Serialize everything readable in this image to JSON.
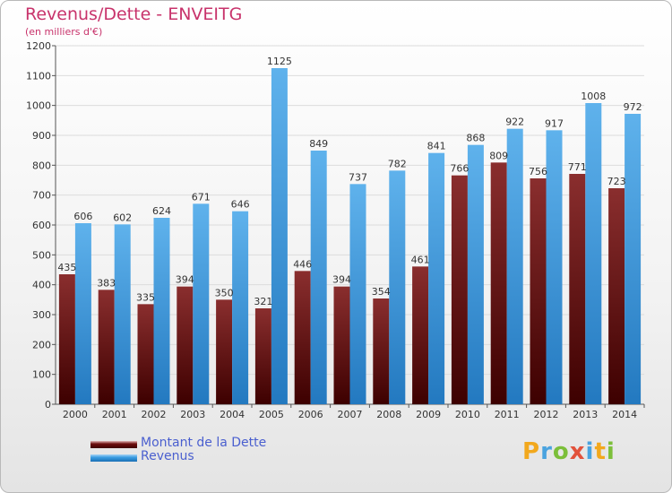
{
  "title": "Revenus/Dette - ENVEITG",
  "subtitle": "(en milliers d'€)",
  "legend": {
    "debt_label": "Montant de la Dette",
    "revenue_label": "Revenus"
  },
  "logo": {
    "text": "Proxiti"
  },
  "colors": {
    "title": "#c8336b",
    "debt": "#6e0f0f",
    "revenue": "#3b9ee2",
    "legend_text": "#4a5fcf"
  },
  "chart_data": {
    "type": "bar",
    "title": "Revenus/Dette - ENVEITG",
    "subtitle": "(en milliers d'€)",
    "xlabel": "",
    "ylabel": "",
    "ylim": [
      0,
      1200
    ],
    "yticks": [
      0,
      100,
      200,
      300,
      400,
      500,
      600,
      700,
      800,
      900,
      1000,
      1100,
      1200
    ],
    "grid": true,
    "legend_position": "bottom-left",
    "categories": [
      "2000",
      "2001",
      "2002",
      "2003",
      "2004",
      "2005",
      "2006",
      "2007",
      "2008",
      "2009",
      "2010",
      "2011",
      "2012",
      "2013",
      "2014"
    ],
    "series": [
      {
        "name": "Montant de la Dette",
        "values": [
          435,
          383,
          335,
          394,
          350,
          321,
          446,
          394,
          354,
          461,
          766,
          809,
          756,
          771,
          723
        ]
      },
      {
        "name": "Revenus",
        "values": [
          606,
          602,
          624,
          671,
          646,
          1125,
          849,
          737,
          782,
          841,
          868,
          922,
          917,
          1008,
          972
        ]
      }
    ]
  }
}
